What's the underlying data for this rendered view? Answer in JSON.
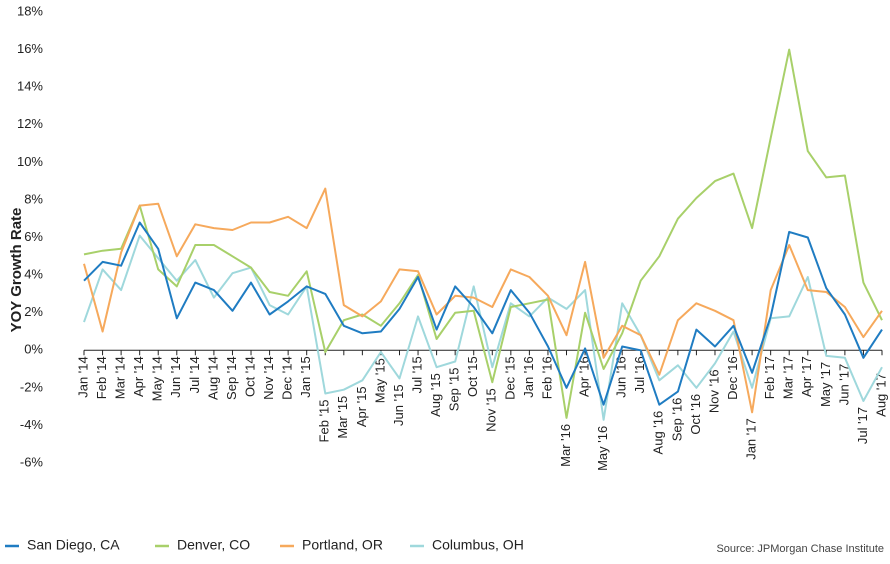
{
  "chart_data": {
    "type": "line",
    "y_label": "YOY Growth Rate",
    "source": "Source:  JPMorgan Chase Institute",
    "categories": [
      "Jan '14",
      "Feb '14",
      "Mar '14",
      "Apr '14",
      "May '14",
      "Jun '14",
      "Jul '14",
      "Aug '14",
      "Sep '14",
      "Oct '14",
      "Nov '14",
      "Dec '14",
      "Jan '15",
      "Feb '15",
      "Mar '15",
      "Apr '15",
      "May '15",
      "Jun '15",
      "Jul '15",
      "Aug '15",
      "Sep '15",
      "Oct '15",
      "Nov '15",
      "Dec '15",
      "Jan '16",
      "Feb '16",
      "Mar '16",
      "Apr '16",
      "May '16",
      "Jun '16",
      "Jul '16",
      "Aug '16",
      "Sep '16",
      "Oct '16",
      "Nov '16",
      "Dec '16",
      "Jan '17",
      "Feb '17",
      "Mar '17",
      "Apr '17",
      "May '17",
      "Jun '17",
      "Jul '17",
      "Aug '17"
    ],
    "series": [
      {
        "name": "San Diego, CA",
        "color": "#1f7cc2",
        "values": [
          3.7,
          4.7,
          4.5,
          6.8,
          5.4,
          1.7,
          3.6,
          3.2,
          2.1,
          3.6,
          1.9,
          2.6,
          3.4,
          3.0,
          1.3,
          0.9,
          1.0,
          2.2,
          3.9,
          1.1,
          3.4,
          2.3,
          0.9,
          3.2,
          2.0,
          0.2,
          -2.0,
          0.1,
          -2.9,
          0.2,
          0.0,
          -2.9,
          -2.2,
          1.1,
          0.2,
          1.3,
          -1.2,
          1.8,
          6.3,
          6.0,
          3.3,
          1.9,
          -0.4,
          1.1
        ]
      },
      {
        "name": "Denver, CO",
        "color": "#a8d06a",
        "values": [
          5.1,
          5.3,
          5.4,
          7.7,
          4.3,
          3.4,
          5.6,
          5.6,
          5.0,
          4.4,
          3.1,
          2.9,
          4.2,
          -0.1,
          1.6,
          1.9,
          1.3,
          2.5,
          4.0,
          0.6,
          2.0,
          2.1,
          -1.7,
          2.3,
          2.5,
          2.7,
          -3.6,
          2.0,
          -1.0,
          0.9,
          3.7,
          5.0,
          7.0,
          8.1,
          9.0,
          9.4,
          6.5,
          11.3,
          16.0,
          10.6,
          9.2,
          9.3,
          3.6,
          1.6
        ]
      },
      {
        "name": "Portland, OR",
        "color": "#f6a95c",
        "values": [
          4.6,
          1.0,
          5.2,
          7.7,
          7.8,
          5.0,
          6.7,
          6.5,
          6.4,
          6.8,
          6.8,
          7.1,
          6.5,
          8.6,
          2.4,
          1.8,
          2.6,
          4.3,
          4.2,
          1.9,
          2.9,
          2.8,
          2.3,
          4.3,
          3.9,
          2.9,
          0.8,
          4.7,
          -0.4,
          1.3,
          0.8,
          -1.3,
          1.6,
          2.5,
          2.1,
          1.6,
          -3.3,
          3.2,
          5.6,
          3.2,
          3.1,
          2.3,
          0.7,
          2.1
        ]
      },
      {
        "name": "Columbus, OH",
        "color": "#9fd8dc",
        "values": [
          1.5,
          4.3,
          3.2,
          6.1,
          4.9,
          3.7,
          4.8,
          2.8,
          4.1,
          4.4,
          2.4,
          1.9,
          3.4,
          -2.3,
          -2.1,
          -1.6,
          -0.1,
          -1.5,
          1.8,
          -0.9,
          -0.6,
          3.4,
          -0.9,
          2.5,
          1.8,
          2.8,
          2.2,
          3.2,
          -3.7,
          2.5,
          0.8,
          -1.6,
          -0.8,
          -2.0,
          -0.7,
          1.0,
          -2.0,
          1.7,
          1.8,
          3.9,
          -0.3,
          -0.4,
          -2.7,
          -0.9
        ]
      }
    ],
    "ylim": [
      -6,
      18
    ],
    "yticks": [
      {
        "value": -6,
        "label": "-6%"
      },
      {
        "value": -4,
        "label": "-4%"
      },
      {
        "value": -2,
        "label": "-2%"
      },
      {
        "value": 0,
        "label": "0%"
      },
      {
        "value": 2,
        "label": "2%"
      },
      {
        "value": 4,
        "label": "4%"
      },
      {
        "value": 6,
        "label": "6%"
      },
      {
        "value": 8,
        "label": "8%"
      },
      {
        "value": 10,
        "label": "10%"
      },
      {
        "value": 12,
        "label": "12%"
      },
      {
        "value": 14,
        "label": "14%"
      },
      {
        "value": 16,
        "label": "16%"
      },
      {
        "value": 18,
        "label": "18%"
      }
    ],
    "grid": false
  }
}
